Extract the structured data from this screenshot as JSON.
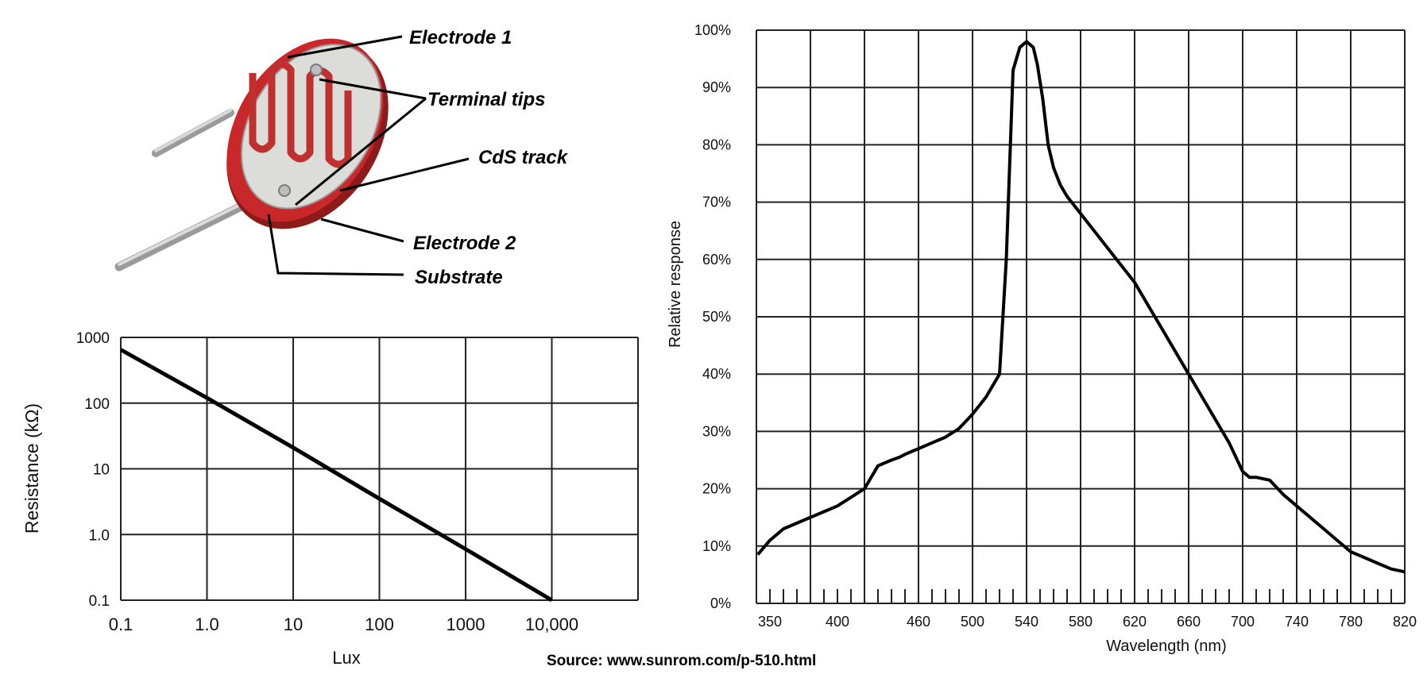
{
  "diagram": {
    "labels": {
      "electrode1": "Electrode 1",
      "terminal_tips": "Terminal tips",
      "cds_track": "CdS track",
      "electrode2": "Electrode 2",
      "substrate": "Substrate"
    },
    "colors": {
      "disc_red": "#c9282a",
      "track_red": "#c0302e",
      "substrate_gray": "#d9d9d6",
      "pin_gray": "#b8b8b8"
    }
  },
  "source": "Source:  www.sunrom.com/p-510.html",
  "chart_data": [
    {
      "type": "line",
      "title": "",
      "xlabel": "Lux",
      "ylabel": "Resistance (kΩ)",
      "x_scale": "log",
      "y_scale": "log",
      "xlim": [
        0.1,
        100000
      ],
      "ylim": [
        0.1,
        1000
      ],
      "x_tick_values": [
        0.1,
        1,
        10,
        100,
        1000,
        10000
      ],
      "x_tick_labels": [
        "0.1",
        "1.0",
        "10",
        "100",
        "1000",
        "10,000"
      ],
      "y_tick_values": [
        1000,
        100,
        10,
        1,
        0.1
      ],
      "y_tick_labels": [
        "1000",
        "100",
        "10",
        "1.0",
        "0.1"
      ],
      "grid": true,
      "series": [
        {
          "x": [
            0.1,
            1,
            10,
            100,
            1000,
            10000
          ],
          "y": [
            650,
            120,
            21,
            3.5,
            0.6,
            0.1
          ]
        }
      ],
      "colors": {
        "line": "#000000",
        "grid": "#222222"
      }
    },
    {
      "type": "line",
      "title": "",
      "xlabel": "Wavelength (nm)",
      "ylabel": "Relative response",
      "xlim": [
        340,
        820
      ],
      "ylim": [
        0,
        100
      ],
      "x_tick_values": [
        350,
        400,
        460,
        500,
        540,
        580,
        620,
        660,
        700,
        740,
        780,
        820
      ],
      "x_tick_labels": [
        "350",
        "400",
        "460",
        "500",
        "540",
        "580",
        "620",
        "660",
        "700",
        "740",
        "780",
        "820"
      ],
      "y_tick_values": [
        0,
        10,
        20,
        30,
        40,
        50,
        60,
        70,
        80,
        90,
        100
      ],
      "y_tick_labels": [
        "0%",
        "10%",
        "20%",
        "30%",
        "40%",
        "50%",
        "60%",
        "70%",
        "80%",
        "90%",
        "100%"
      ],
      "grid": true,
      "series": [
        {
          "x": [
            341,
            350,
            360,
            370,
            380,
            390,
            400,
            410,
            420,
            430,
            440,
            446,
            450,
            460,
            470,
            480,
            490,
            500,
            510,
            520,
            525,
            530,
            535,
            540,
            545,
            548,
            552,
            556,
            560,
            565,
            570,
            580,
            590,
            600,
            610,
            620,
            630,
            640,
            650,
            660,
            670,
            680,
            690,
            700,
            705,
            710,
            720,
            730,
            740,
            750,
            760,
            770,
            780,
            790,
            800,
            810,
            820
          ],
          "y": [
            8.5,
            11,
            13,
            14,
            15,
            16,
            17,
            18.5,
            20,
            24,
            25,
            25.5,
            26,
            27,
            28,
            29,
            30.5,
            33,
            36,
            40,
            60,
            93,
            97,
            98,
            97,
            94,
            88,
            80,
            76,
            73,
            71,
            68,
            65,
            62,
            59,
            56,
            52,
            48,
            44,
            40,
            36,
            32,
            28,
            23,
            22,
            22,
            21.5,
            19,
            17,
            15,
            13,
            11,
            9,
            8,
            7,
            6,
            5.5
          ]
        }
      ],
      "colors": {
        "line": "#000000",
        "grid": "#222222"
      }
    }
  ]
}
